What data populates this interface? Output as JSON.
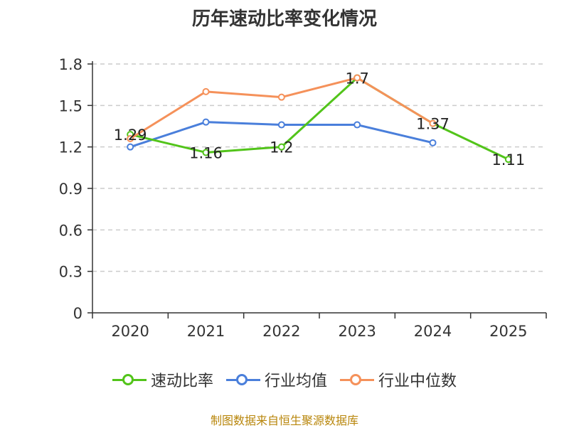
{
  "chart_data": {
    "type": "line",
    "title": "历年速动比率变化情况",
    "categories": [
      "2020",
      "2021",
      "2022",
      "2023",
      "2024",
      "2025"
    ],
    "ylim": [
      0,
      1.8
    ],
    "yticks": [
      "0",
      "0.3",
      "0.6",
      "0.9",
      "1.2",
      "1.5",
      "1.8"
    ],
    "grid": true,
    "legend_position": "bottom",
    "series": [
      {
        "name": "速动比率",
        "color": "#52c41a",
        "values": [
          1.29,
          1.16,
          1.2,
          1.7,
          1.37,
          1.11
        ],
        "labels": [
          "1.29",
          "1.16",
          "1.2",
          "1.7",
          "1.37",
          "1.11"
        ]
      },
      {
        "name": "行业均值",
        "color": "#4a7fdb",
        "values": [
          1.2,
          1.38,
          1.36,
          1.36,
          1.23,
          null
        ]
      },
      {
        "name": "行业中位数",
        "color": "#f5915a",
        "values": [
          1.26,
          1.6,
          1.56,
          1.7,
          1.37,
          null
        ]
      }
    ]
  },
  "footer": "制图数据来自恒生聚源数据库"
}
